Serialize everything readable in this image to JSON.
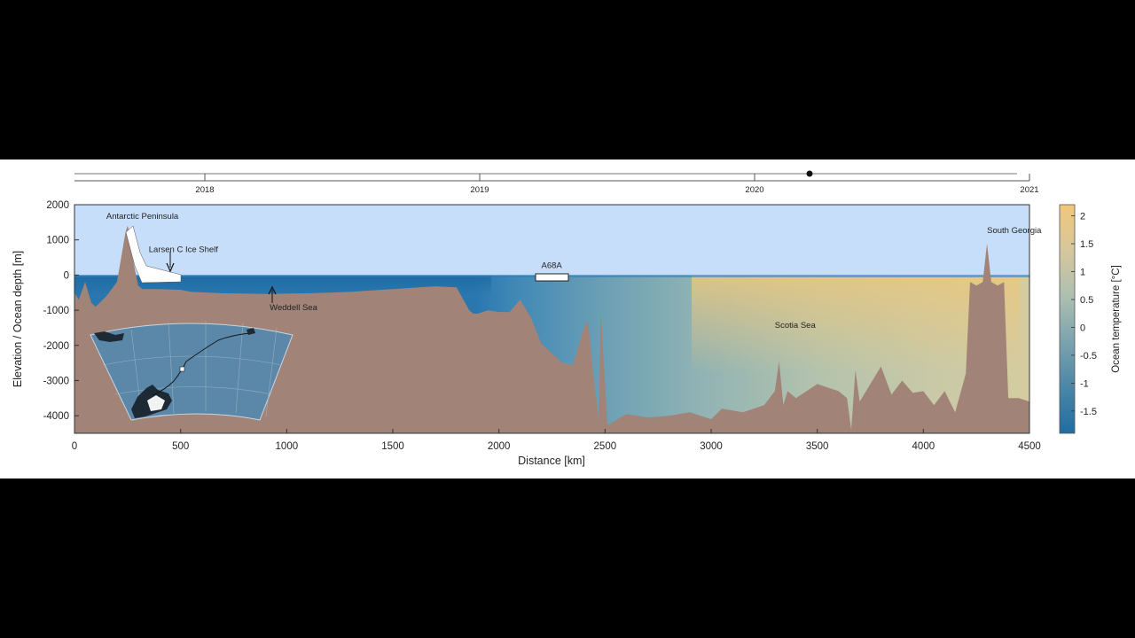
{
  "timeline": {
    "years": [
      "2018",
      "2019",
      "2020",
      "2021"
    ],
    "current_position": 2020.2
  },
  "chart_data": {
    "type": "area",
    "xlabel": "Distance [km]",
    "ylabel": "Elevation / Ocean depth [m]",
    "xlim": [
      0,
      4500
    ],
    "ylim": [
      -4500,
      2000
    ],
    "xticks": [
      0,
      500,
      1000,
      1500,
      2000,
      2500,
      3000,
      3500,
      4000,
      4500
    ],
    "yticks": [
      2000,
      1000,
      0,
      -1000,
      -2000,
      -3000,
      -4000
    ],
    "colorbar": {
      "label": "Ocean temperature [°C]",
      "range": [
        -1.9,
        2.2
      ],
      "ticks": [
        "2",
        "1.5",
        "1",
        "0.5",
        "0",
        "-0.5",
        "-1",
        "-1.5"
      ],
      "colors": [
        "#1f6da3",
        "#4b86a6",
        "#7ba3ae",
        "#aebfb0",
        "#d6c79c",
        "#f1c77a"
      ]
    },
    "terrain_profile": {
      "x": [
        0,
        20,
        50,
        80,
        100,
        150,
        200,
        220,
        240,
        250,
        260,
        280,
        300,
        320,
        340,
        400,
        500,
        550,
        700,
        900,
        1100,
        1300,
        1500,
        1700,
        1800,
        1860,
        1880,
        1900,
        1950,
        2000,
        2050,
        2100,
        2150,
        2200,
        2300,
        2350,
        2400,
        2420,
        2440,
        2470,
        2480,
        2500,
        2510,
        2520,
        2530,
        2600,
        2700,
        2800,
        2900,
        3000,
        3050,
        3150,
        3250,
        3300,
        3320,
        3340,
        3360,
        3400,
        3500,
        3600,
        3640,
        3660,
        3680,
        3700,
        3750,
        3800,
        3850,
        3900,
        3950,
        4000,
        4050,
        4100,
        4150,
        4200,
        4220,
        4250,
        4280,
        4300,
        4320,
        4350,
        4380,
        4400,
        4450,
        4500
      ],
      "y": [
        -500,
        -700,
        -200,
        -800,
        -900,
        -600,
        -200,
        500,
        1200,
        1400,
        1200,
        300,
        -300,
        -400,
        -400,
        -400,
        -420,
        -480,
        -520,
        -540,
        -520,
        -480,
        -400,
        -320,
        -350,
        -1000,
        -1100,
        -1100,
        -1000,
        -1050,
        -1050,
        -700,
        -1200,
        -1950,
        -2500,
        -2550,
        -1500,
        -1300,
        -2600,
        -4100,
        -950,
        -3100,
        -4200,
        -4250,
        -4200,
        -3950,
        -4050,
        -4000,
        -3900,
        -4100,
        -3800,
        -3900,
        -3700,
        -3300,
        -2450,
        -3700,
        -3300,
        -3500,
        -3100,
        -3300,
        -3500,
        -4400,
        -2700,
        -3600,
        -3100,
        -2600,
        -3400,
        -3000,
        -3350,
        -3300,
        -3700,
        -3300,
        -3900,
        -2800,
        -200,
        -300,
        -200,
        900,
        -200,
        -300,
        -200,
        -3500,
        -3500,
        -3600
      ]
    },
    "annotations": [
      {
        "text": "Antarctic Peninsula",
        "x": 150,
        "y": 1600
      },
      {
        "text": "Larsen C Ice Shelf",
        "x": 350,
        "y": 650
      },
      {
        "text": "Weddell Sea",
        "x": 920,
        "y": -1000
      },
      {
        "text": "A68A",
        "x": 2200,
        "y": 200
      },
      {
        "text": "Scotia Sea",
        "x": 3300,
        "y": -1500
      },
      {
        "text": "South Georgia",
        "x": 4300,
        "y": 1200
      }
    ]
  }
}
